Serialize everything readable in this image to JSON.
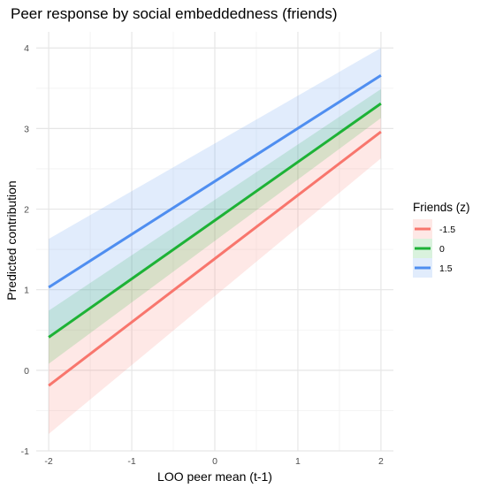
{
  "chart_data": {
    "type": "line",
    "title": "Peer response by social embeddedness (friends)",
    "xlabel": "LOO peer mean (t-1)",
    "ylabel": "Predicted contribution",
    "xlim": [
      -2.15,
      2.15
    ],
    "ylim": [
      -1,
      4.2
    ],
    "x_ticks": [
      -2,
      -1,
      0,
      1,
      2
    ],
    "y_ticks": [
      -1,
      0,
      1,
      2,
      3,
      4
    ],
    "x_tick_labels": [
      "-2",
      "-1",
      "0",
      "1",
      "2"
    ],
    "y_tick_labels": [
      "-1",
      "0",
      "1",
      "2",
      "3",
      "4"
    ],
    "grid": true,
    "legend": {
      "title": "Friends (z)",
      "position": "right"
    },
    "series": [
      {
        "name": "-1.5",
        "color": "#f8766d",
        "x": [
          -2,
          2
        ],
        "y": [
          -0.19,
          2.96
        ],
        "lower": [
          -0.79,
          2.63
        ],
        "upper": [
          0.41,
          3.29
        ]
      },
      {
        "name": "0",
        "color": "#1db236",
        "x": [
          -2,
          2
        ],
        "y": [
          0.41,
          3.31
        ],
        "lower": [
          0.08,
          3.13
        ],
        "upper": [
          0.74,
          3.49
        ]
      },
      {
        "name": "1.5",
        "color": "#4f8ef0",
        "x": [
          -2,
          2
        ],
        "y": [
          1.03,
          3.66
        ],
        "lower": [
          0.43,
          3.32
        ],
        "upper": [
          1.63,
          4.0
        ]
      }
    ]
  }
}
